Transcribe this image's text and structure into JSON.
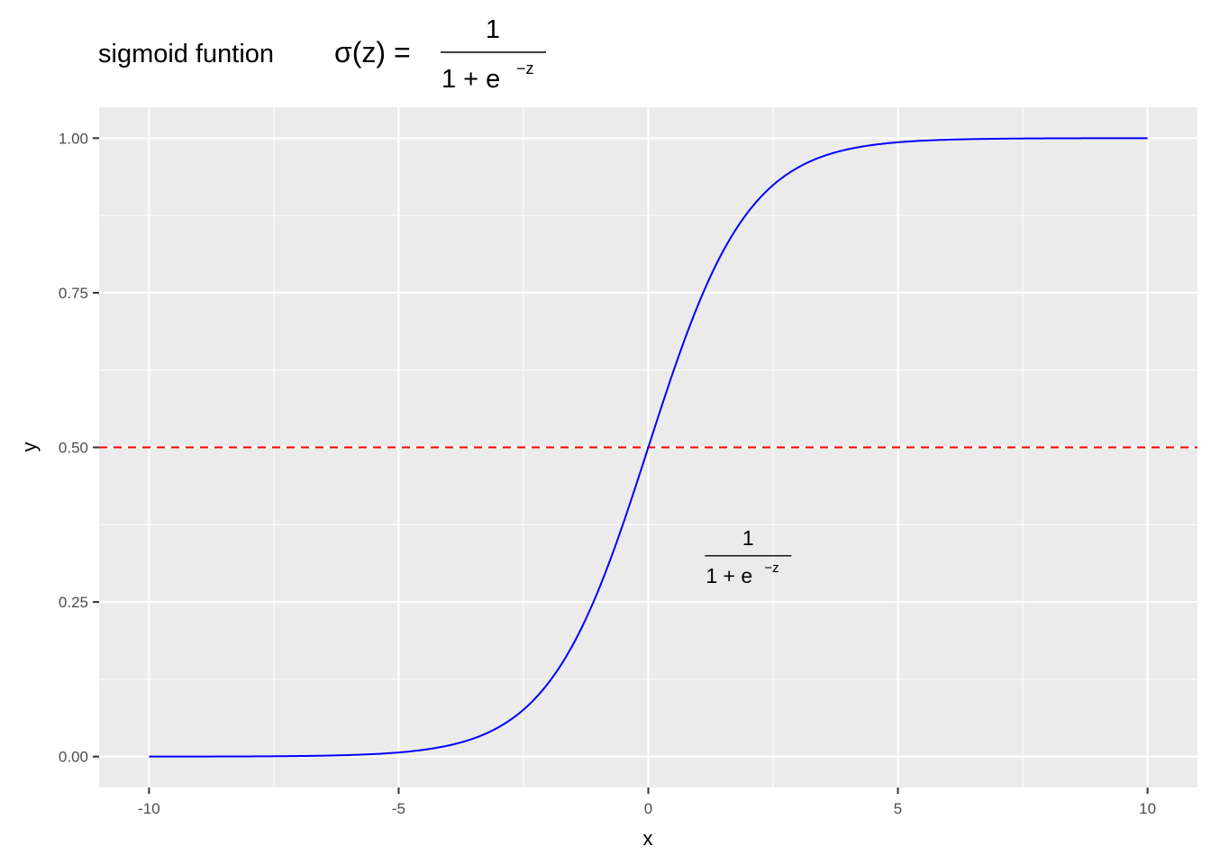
{
  "chart_data": {
    "type": "line",
    "title": {
      "prefix": "sigmoid funtion",
      "lhs": "σ(z) =",
      "numerator": "1",
      "denominator": "1 + e",
      "exponent": "−z"
    },
    "xlabel": "x",
    "ylabel": "y",
    "xlim": [
      -11,
      11
    ],
    "ylim": [
      -0.05,
      1.05
    ],
    "x_ticks": [
      -10,
      -5,
      0,
      5,
      10
    ],
    "x_tick_labels": [
      "-10",
      "-5",
      "0",
      "5",
      "10"
    ],
    "y_ticks": [
      0,
      0.25,
      0.5,
      0.75,
      1
    ],
    "y_tick_labels": [
      "0.00",
      "0.25",
      "0.50",
      "0.75",
      "1.00"
    ],
    "x_minor": [
      -7.5,
      -2.5,
      2.5,
      7.5
    ],
    "y_minor": [
      0.125,
      0.375,
      0.625,
      0.875
    ],
    "grid": true,
    "background": "#ebebeb",
    "series": [
      {
        "color": "#0000ff",
        "function": "1 / (1 + exp(-x))",
        "x_range": [
          -10,
          10
        ],
        "x": [
          -10,
          -8,
          -6,
          -5,
          -4,
          -3,
          -2,
          -1,
          0,
          1,
          2,
          3,
          4,
          5,
          6,
          8,
          10
        ],
        "y": [
          4.54e-05,
          0.000335,
          0.00247,
          0.00669,
          0.018,
          0.0474,
          0.119,
          0.269,
          0.5,
          0.731,
          0.881,
          0.953,
          0.982,
          0.993,
          0.9975,
          0.99966,
          0.99995
        ]
      }
    ],
    "hline": {
      "y": 0.5,
      "color": "#ff0000",
      "style": "dashed"
    },
    "annotation": {
      "x": 2,
      "y": 0.3,
      "numerator": "1",
      "denominator": "1 + e",
      "exponent": "−z"
    }
  }
}
